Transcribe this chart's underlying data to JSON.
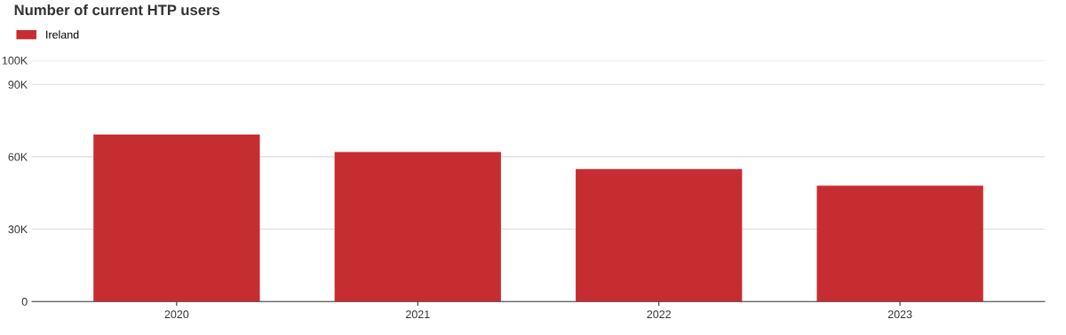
{
  "chart_data": {
    "type": "bar",
    "title": "Number of current HTP users",
    "categories": [
      "2020",
      "2021",
      "2022",
      "2023"
    ],
    "series": [
      {
        "name": "Ireland",
        "color": "#c62d31",
        "values": [
          69200,
          62000,
          54900,
          48000
        ]
      }
    ],
    "ylim": [
      0,
      100000
    ],
    "yticks": [
      0,
      {
        "value": 30000,
        "label": "30K"
      },
      {
        "value": 60000,
        "label": "60K"
      },
      {
        "value": 90000,
        "label": "90K"
      },
      {
        "value": 100000,
        "label": "100K"
      }
    ],
    "grid": "y",
    "legend": "top left"
  }
}
